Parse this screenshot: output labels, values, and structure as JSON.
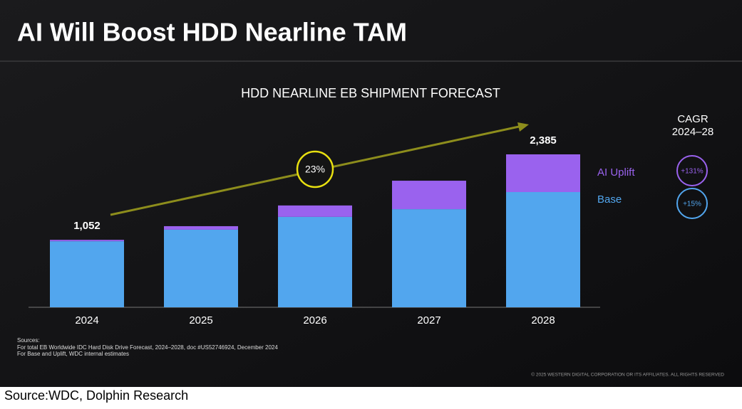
{
  "title": "AI Will Boost HDD Nearline TAM",
  "chart_data": {
    "type": "stacked_bar",
    "title": "HDD NEARLINE EB SHIPMENT FORECAST",
    "categories": [
      "2024",
      "2025",
      "2026",
      "2027",
      "2028"
    ],
    "series": [
      {
        "name": "Base",
        "color": "#52a6ee",
        "values": [
          1030,
          1210,
          1410,
          1530,
          1797
        ],
        "cagr_label": "+15%"
      },
      {
        "name": "AI Uplift",
        "color": "#9a62ee",
        "values": [
          22,
          55,
          178,
          444,
          588
        ],
        "cagr_label": "+131%"
      }
    ],
    "totals": [
      1052,
      null,
      null,
      null,
      2385
    ],
    "total_labels": [
      "1,052",
      null,
      null,
      null,
      "2,385"
    ],
    "annotation": "23%",
    "cagr_title": [
      "CAGR",
      "2024–28"
    ]
  },
  "sources": [
    "Sources:",
    "For total EB Worldwide IDC Hard Disk Drive Forecast, 2024–2028, doc #US52746924, December 2024",
    "For Base and Uplift, WDC internal estimates"
  ],
  "copyright": "© 2025 WESTERN DIGITAL CORPORATION OR ITS AFFILIATES. ALL RIGHTS RESERVED",
  "footer": "Source:WDC, Dolphin Research"
}
